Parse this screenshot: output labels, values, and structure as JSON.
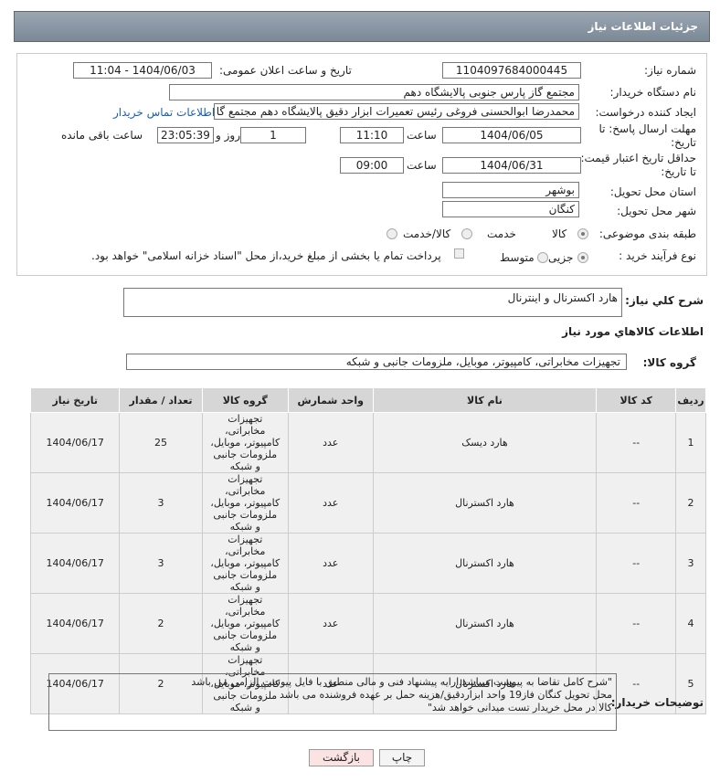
{
  "header": {
    "title": "جزئیات اطلاعات نیاز"
  },
  "form": {
    "need_number": {
      "label": "شماره نیاز:",
      "value": "1104097684000445"
    },
    "announce_date": {
      "label": "تاریخ و ساعت اعلان عمومی:",
      "value": "1404/06/03 - 11:04"
    },
    "buyer_org": {
      "label": "نام دستگاه خریدار:",
      "value": "مجتمع گاز پارس جنوبی  پالایشگاه دهم"
    },
    "creator": {
      "label": "ایجاد کننده درخواست:",
      "value": "محمدرضا ابوالحسنی فروغی رئیس تعمیرات ابزار دقیق پالایشگاه دهم  مجتمع گا",
      "link": "اطلاعات تماس خریدار"
    },
    "deadline": {
      "label": "مهلت ارسال پاسخ: تا تاریخ:",
      "date": "1404/06/05",
      "time_label": "ساعت",
      "time": "11:10",
      "days": "1",
      "days_label": "روز و",
      "remaining": "23:05:39",
      "remaining_label": "ساعت باقی مانده"
    },
    "validity": {
      "label": "حداقل تاریخ اعتبار قیمت: تا تاریخ:",
      "date": "1404/06/31",
      "time_label": "ساعت",
      "time": "09:00"
    },
    "province": {
      "label": "استان محل تحویل:",
      "value": "بوشهر"
    },
    "city": {
      "label": "شهر محل تحویل:",
      "value": "کنگان"
    },
    "category": {
      "label": "طبقه بندی موضوعی:",
      "options": [
        "کالا",
        "خدمت",
        "کالا/خدمت"
      ]
    },
    "process": {
      "label": "نوع فرآیند خرید :",
      "options": [
        "جزیی",
        "متوسط"
      ],
      "treasury": "پرداخت تمام یا بخشی از مبلغ خرید،از محل \"اسناد خزانه اسلامی\" خواهد بود."
    }
  },
  "description": {
    "label": "شرح کلي نياز:",
    "value": "هارد اکسترنال و اینترنال"
  },
  "goods": {
    "title": "اطلاعات کالاهاي مورد نياز",
    "group_label": "گروه کالا:",
    "group": "تجهیزات مخابراتی، کامپیوتر، موبایل، ملزومات جانبی و شبکه"
  },
  "table": {
    "columns": [
      "ردیف",
      "کد کالا",
      "نام کالا",
      "واحد شمارش",
      "گروه کالا",
      "تعداد / مقدار",
      "تاریخ نیاز"
    ],
    "rows": [
      [
        "1",
        "--",
        "هارد دیسک",
        "عدد",
        "تجهیزات مخابراتی، کامپیوتر، موبایل، ملزومات جانبی و شبکه",
        "25",
        "1404/06/17"
      ],
      [
        "2",
        "--",
        "هارد اکسترنال",
        "عدد",
        "تجهیزات مخابراتی، کامپیوتر، موبایل، ملزومات جانبی و شبکه",
        "3",
        "1404/06/17"
      ],
      [
        "3",
        "--",
        "هارد اکسترنال",
        "عدد",
        "تجهیزات مخابراتی، کامپیوتر، موبایل، ملزومات جانبی و شبکه",
        "3",
        "1404/06/17"
      ],
      [
        "4",
        "--",
        "هارد اکسترنال",
        "عدد",
        "تجهیزات مخابراتی، کامپیوتر، موبایل، ملزومات جانبی و شبکه",
        "2",
        "1404/06/17"
      ],
      [
        "5",
        "--",
        "هارد اکسترنال",
        "عدد",
        "تجهیزات مخابراتی، کامپیوتر، موبایل، ملزومات جانبی و شبکه",
        "2",
        "1404/06/17"
      ]
    ]
  },
  "buyer_notes": {
    "label": "توضیحات خریدار:",
    "lines": [
      "\"شرح کامل تقاضا به پیوست میباشد.ارایه پیشنهاد فنی و مالی منطبق با فایل پیوست الزامی می باشد",
      "محل تحویل کنگان فاز19 واحد ابزاردقیق/هزینه حمل بر عهده فروشنده می باشد",
      "کالا در محل خریدار تست میدانی خواهد شد\""
    ]
  },
  "buttons": {
    "print": "چاپ",
    "back": "بازگشت"
  }
}
